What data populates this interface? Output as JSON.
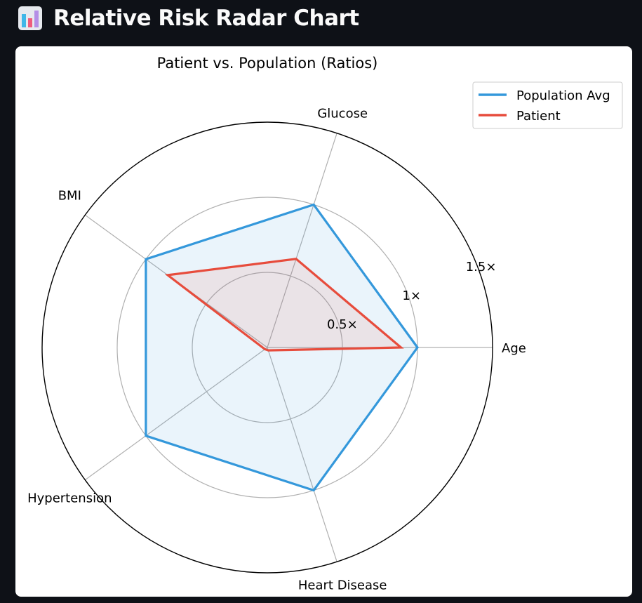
{
  "app": {
    "title": "Relative Risk Radar Chart",
    "icon": "bar-chart-icon"
  },
  "chart_data": {
    "type": "radar",
    "title": "Patient vs. Population (Ratios)",
    "categories": [
      "Age",
      "Glucose",
      "BMI",
      "Hypertension",
      "Heart Disease"
    ],
    "radial_ticks": [
      0.5,
      1.0,
      1.5
    ],
    "radial_tick_labels": [
      "0.5×",
      "1×",
      "1.5×"
    ],
    "rlim": [
      0,
      1.5
    ],
    "grid": true,
    "legend_position": "top-right",
    "series": [
      {
        "name": "Population Avg",
        "values": [
          1.0,
          1.0,
          1.0,
          1.0,
          1.0
        ],
        "color": "#3498db"
      },
      {
        "name": "Patient",
        "values": [
          0.89,
          0.62,
          0.82,
          0.02,
          0.02
        ],
        "color": "#e74c3c"
      }
    ]
  }
}
